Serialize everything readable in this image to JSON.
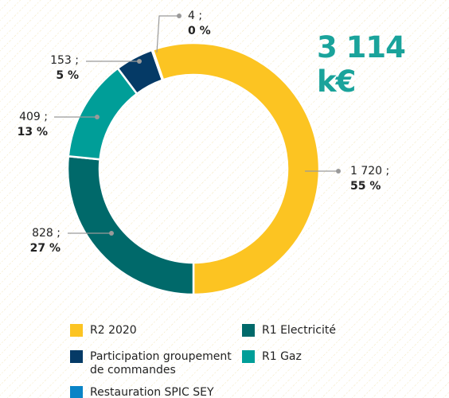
{
  "chart_data": {
    "type": "donut",
    "title": "3 114 k€",
    "categories": [
      "R2 2020",
      "R1 Electricité",
      "R1 Gaz",
      "Participation groupement de commandes",
      "Restauration SPIC SEY EnR"
    ],
    "values": [
      1720,
      828,
      409,
      153,
      4
    ],
    "value_labels": [
      "1 720 ;",
      "828 ;",
      "409 ;",
      "153 ;",
      "4 ;"
    ],
    "percent_labels": [
      "55 %",
      "27 %",
      "13 %",
      "5 %",
      "0 %"
    ],
    "colors": [
      "#fcc422",
      "#00696a",
      "#009e98",
      "#053a66",
      "#0a84c6"
    ],
    "legend": "bottom"
  }
}
